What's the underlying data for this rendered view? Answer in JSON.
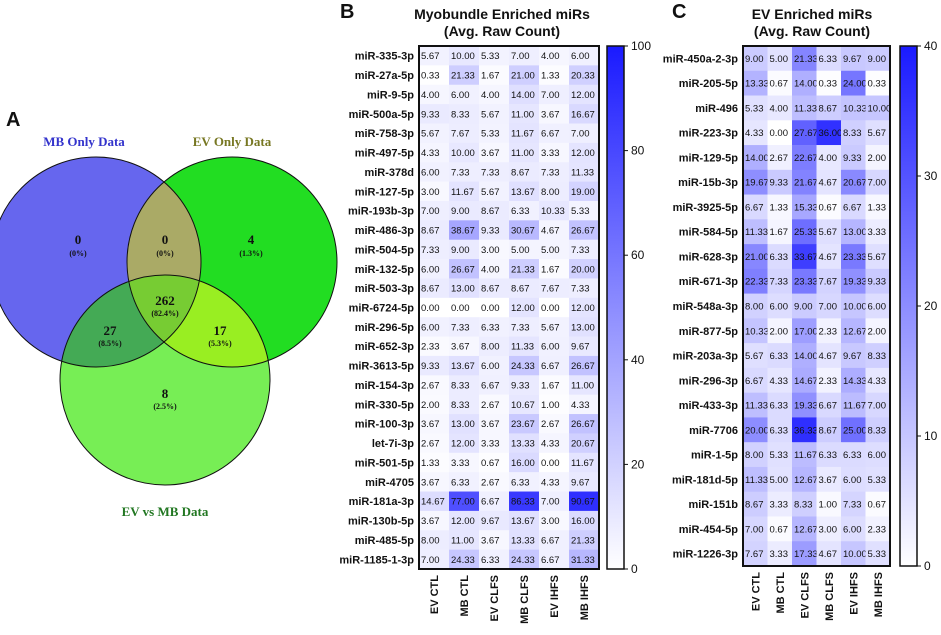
{
  "panels": {
    "a": {
      "letter": "A"
    },
    "b": {
      "letter": "B"
    },
    "c": {
      "letter": "C"
    }
  },
  "venn": {
    "set_labels": {
      "mb": "MB Only Data",
      "ev": "EV Only Data",
      "evmb": "EV vs MB Data"
    },
    "colors": {
      "mb": "#6666ee",
      "ev": "#22dd22",
      "evmb": "#77ee55",
      "mb_ev": "#aaaa66",
      "mb_evmb": "#44aa55",
      "ev_evmb": "#99ee22",
      "all": "#77cc33",
      "mb_label": "#3333cc",
      "ev_label": "#777722",
      "evmb_label": "#227722"
    },
    "regions": {
      "mb_only": {
        "count": "0",
        "pct": "(0%)"
      },
      "mb_ev": {
        "count": "0",
        "pct": "(0%)"
      },
      "ev_only": {
        "count": "4",
        "pct": "(1.3%)"
      },
      "all": {
        "count": "262",
        "pct": "(82.4%)"
      },
      "mb_evmb": {
        "count": "27",
        "pct": "(8.5%)"
      },
      "ev_evmb": {
        "count": "17",
        "pct": "(5.3%)"
      },
      "evmb_only": {
        "count": "8",
        "pct": "(2.5%)"
      }
    }
  },
  "chart_data": [
    {
      "type": "heatmap",
      "title": "Myobundle Enriched miRs",
      "subtitle": "(Avg. Raw Count)",
      "columns": [
        "EV CTL",
        "MB CTL",
        "EV CLFS",
        "MB CLFS",
        "EV IHFS",
        "MB IHFS"
      ],
      "colorbar": {
        "min": 0,
        "max": 100,
        "ticks": [
          "0",
          "20",
          "40",
          "60",
          "80",
          "100"
        ]
      },
      "color_low": "#ffffff",
      "color_high": "#1a1aff",
      "rows": [
        {
          "label": "miR-335-3p",
          "values": [
            "5.67",
            "10.00",
            "5.33",
            "7.00",
            "4.00",
            "6.00"
          ]
        },
        {
          "label": "miR-27a-5p",
          "values": [
            "0.33",
            "21.33",
            "1.67",
            "21.00",
            "1.33",
            "20.33"
          ]
        },
        {
          "label": "miR-9-5p",
          "values": [
            "4.00",
            "6.00",
            "4.00",
            "14.00",
            "7.00",
            "12.00"
          ]
        },
        {
          "label": "miR-500a-5p",
          "values": [
            "9.33",
            "8.33",
            "5.67",
            "11.00",
            "3.67",
            "16.67"
          ]
        },
        {
          "label": "miR-758-3p",
          "values": [
            "5.67",
            "7.67",
            "5.33",
            "11.67",
            "6.67",
            "7.00"
          ]
        },
        {
          "label": "miR-497-5p",
          "values": [
            "4.33",
            "10.00",
            "3.67",
            "11.00",
            "3.33",
            "12.00"
          ]
        },
        {
          "label": "miR-378d",
          "values": [
            "6.00",
            "7.33",
            "7.33",
            "8.67",
            "7.33",
            "11.33"
          ]
        },
        {
          "label": "miR-127-5p",
          "values": [
            "3.00",
            "11.67",
            "5.67",
            "13.67",
            "8.00",
            "19.00"
          ]
        },
        {
          "label": "miR-193b-3p",
          "values": [
            "7.00",
            "9.00",
            "8.67",
            "6.33",
            "10.33",
            "5.33"
          ]
        },
        {
          "label": "miR-486-3p",
          "values": [
            "8.67",
            "38.67",
            "9.33",
            "30.67",
            "4.67",
            "26.67"
          ]
        },
        {
          "label": "miR-504-5p",
          "values": [
            "7.33",
            "9.00",
            "3.00",
            "5.00",
            "5.00",
            "7.33"
          ]
        },
        {
          "label": "miR-132-5p",
          "values": [
            "6.00",
            "26.67",
            "4.00",
            "21.33",
            "1.67",
            "20.00"
          ]
        },
        {
          "label": "miR-503-3p",
          "values": [
            "8.67",
            "13.00",
            "8.67",
            "8.67",
            "7.67",
            "7.33"
          ]
        },
        {
          "label": "miR-6724-5p",
          "values": [
            "0.00",
            "0.00",
            "0.00",
            "12.00",
            "0.00",
            "12.00"
          ]
        },
        {
          "label": "miR-296-5p",
          "values": [
            "6.00",
            "7.33",
            "6.33",
            "7.33",
            "5.67",
            "13.00"
          ]
        },
        {
          "label": "miR-652-3p",
          "values": [
            "2.33",
            "3.67",
            "8.00",
            "11.33",
            "6.00",
            "9.67"
          ]
        },
        {
          "label": "miR-3613-5p",
          "values": [
            "9.33",
            "13.67",
            "6.00",
            "24.33",
            "6.67",
            "26.67"
          ]
        },
        {
          "label": "miR-154-3p",
          "values": [
            "2.67",
            "8.33",
            "6.67",
            "9.33",
            "1.67",
            "11.00"
          ]
        },
        {
          "label": "miR-330-5p",
          "values": [
            "2.00",
            "8.33",
            "2.67",
            "10.67",
            "1.00",
            "4.33"
          ]
        },
        {
          "label": "miR-100-3p",
          "values": [
            "3.67",
            "13.00",
            "3.67",
            "23.67",
            "2.67",
            "26.67"
          ]
        },
        {
          "label": "let-7i-3p",
          "values": [
            "2.67",
            "12.00",
            "3.33",
            "13.33",
            "4.33",
            "20.67"
          ]
        },
        {
          "label": "miR-501-5p",
          "values": [
            "1.33",
            "3.33",
            "0.67",
            "16.00",
            "0.00",
            "11.67"
          ]
        },
        {
          "label": "miR-4705",
          "values": [
            "3.67",
            "6.33",
            "2.67",
            "6.33",
            "4.33",
            "9.67"
          ]
        },
        {
          "label": "miR-181a-3p",
          "values": [
            "14.67",
            "77.00",
            "6.67",
            "86.33",
            "7.00",
            "90.67"
          ]
        },
        {
          "label": "miR-130b-5p",
          "values": [
            "3.67",
            "12.00",
            "9.67",
            "13.67",
            "3.00",
            "16.00"
          ]
        },
        {
          "label": "miR-485-5p",
          "values": [
            "8.00",
            "11.00",
            "3.67",
            "13.33",
            "6.67",
            "21.33"
          ]
        },
        {
          "label": "miR-1185-1-3p",
          "values": [
            "7.00",
            "24.33",
            "6.33",
            "24.33",
            "6.67",
            "31.33"
          ]
        }
      ]
    },
    {
      "type": "heatmap",
      "title": "EV Enriched miRs",
      "subtitle": "(Avg. Raw Count)",
      "columns": [
        "EV CTL",
        "MB CTL",
        "EV CLFS",
        "MB CLFS",
        "EV IHFS",
        "MB IHFS"
      ],
      "colorbar": {
        "min": 0,
        "max": 40,
        "ticks": [
          "0",
          "10",
          "20",
          "30",
          "40"
        ]
      },
      "color_low": "#ffffff",
      "color_high": "#1a1aff",
      "rows": [
        {
          "label": "miR-450a-2-3p",
          "values": [
            "9.00",
            "5.00",
            "21.33",
            "6.33",
            "9.67",
            "9.00"
          ]
        },
        {
          "label": "miR-205-5p",
          "values": [
            "13.33",
            "0.67",
            "14.00",
            "0.33",
            "24.00",
            "0.33"
          ]
        },
        {
          "label": "miR-496",
          "values": [
            "5.33",
            "4.00",
            "11.33",
            "8.67",
            "10.33",
            "10.00"
          ]
        },
        {
          "label": "miR-223-3p",
          "values": [
            "4.33",
            "0.00",
            "27.67",
            "36.00",
            "8.33",
            "5.67"
          ]
        },
        {
          "label": "miR-129-5p",
          "values": [
            "14.00",
            "2.67",
            "22.67",
            "4.00",
            "9.33",
            "2.00"
          ]
        },
        {
          "label": "miR-15b-3p",
          "values": [
            "19.67",
            "9.33",
            "21.67",
            "4.67",
            "20.67",
            "7.00"
          ]
        },
        {
          "label": "miR-3925-5p",
          "values": [
            "6.67",
            "1.33",
            "15.33",
            "0.67",
            "6.67",
            "1.33"
          ]
        },
        {
          "label": "miR-584-5p",
          "values": [
            "11.33",
            "1.67",
            "25.33",
            "5.67",
            "13.00",
            "3.33"
          ]
        },
        {
          "label": "miR-628-3p",
          "values": [
            "21.00",
            "6.33",
            "33.67",
            "4.67",
            "23.33",
            "5.67"
          ]
        },
        {
          "label": "miR-671-3p",
          "values": [
            "22.33",
            "7.33",
            "23.33",
            "7.67",
            "19.33",
            "9.33"
          ]
        },
        {
          "label": "miR-548a-3p",
          "values": [
            "8.00",
            "6.00",
            "9.00",
            "7.00",
            "10.00",
            "6.00"
          ]
        },
        {
          "label": "miR-877-5p",
          "values": [
            "10.33",
            "2.00",
            "17.00",
            "2.33",
            "12.67",
            "2.00"
          ]
        },
        {
          "label": "miR-203a-3p",
          "values": [
            "5.67",
            "6.33",
            "14.00",
            "4.67",
            "9.67",
            "8.33"
          ]
        },
        {
          "label": "miR-296-3p",
          "values": [
            "6.67",
            "4.33",
            "14.67",
            "2.33",
            "14.33",
            "4.33"
          ]
        },
        {
          "label": "miR-433-3p",
          "values": [
            "11.33",
            "6.33",
            "19.33",
            "6.67",
            "11.67",
            "7.00"
          ]
        },
        {
          "label": "miR-7706",
          "values": [
            "20.00",
            "6.33",
            "36.33",
            "8.67",
            "25.00",
            "8.33"
          ]
        },
        {
          "label": "miR-1-5p",
          "values": [
            "8.00",
            "5.33",
            "11.67",
            "6.33",
            "6.33",
            "6.00"
          ]
        },
        {
          "label": "miR-181d-5p",
          "values": [
            "11.33",
            "5.00",
            "12.67",
            "3.67",
            "6.00",
            "5.33"
          ]
        },
        {
          "label": "miR-151b",
          "values": [
            "8.67",
            "3.33",
            "8.33",
            "1.00",
            "7.33",
            "0.67"
          ]
        },
        {
          "label": "miR-454-5p",
          "values": [
            "7.00",
            "0.67",
            "12.67",
            "3.00",
            "6.00",
            "2.33"
          ]
        },
        {
          "label": "miR-1226-3p",
          "values": [
            "7.67",
            "3.33",
            "17.33",
            "4.67",
            "10.00",
            "5.33"
          ]
        }
      ]
    }
  ]
}
